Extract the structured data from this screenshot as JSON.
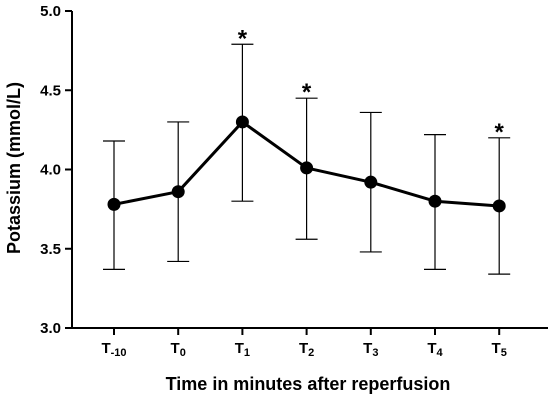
{
  "chart_data": {
    "type": "line",
    "title": "",
    "xlabel": "Time in minutes after reperfusion",
    "ylabel": "Potassium (mmol/L)",
    "ylim": [
      3.0,
      5.0
    ],
    "yticks": [
      "3.0",
      "3.5",
      "4.0",
      "4.5",
      "5.0"
    ],
    "grid": false,
    "categories": [
      {
        "base": "T",
        "sub": "-10"
      },
      {
        "base": "T",
        "sub": "0"
      },
      {
        "base": "T",
        "sub": "1"
      },
      {
        "base": "T",
        "sub": "2"
      },
      {
        "base": "T",
        "sub": "3"
      },
      {
        "base": "T",
        "sub": "4"
      },
      {
        "base": "T",
        "sub": "5"
      }
    ],
    "series": [
      {
        "values": [
          3.78,
          3.86,
          4.3,
          4.01,
          3.92,
          3.8,
          3.77
        ],
        "error_upper": [
          4.18,
          4.3,
          4.79,
          4.45,
          4.36,
          4.22,
          4.2
        ],
        "error_lower": [
          3.37,
          3.42,
          3.8,
          3.56,
          3.48,
          3.37,
          3.34
        ],
        "color": "#000000"
      }
    ],
    "significance_marker": "*",
    "significant_indices": [
      2,
      3,
      6
    ]
  }
}
